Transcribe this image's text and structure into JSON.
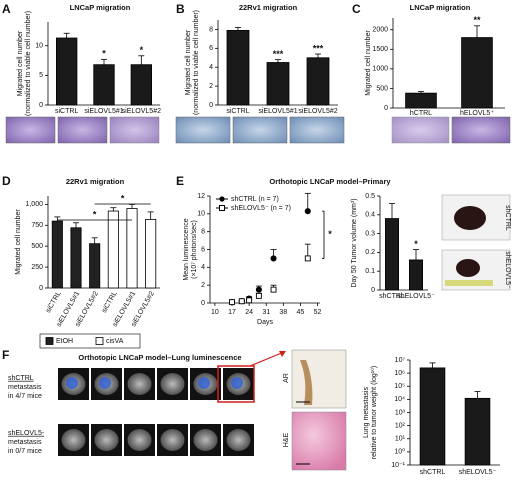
{
  "figure": {
    "panel_labels": [
      "A",
      "B",
      "C",
      "D",
      "E",
      "F"
    ],
    "e_photo_labels": [
      "shCTRL",
      "shELOVL5⁻"
    ],
    "f_title": "Orthotopic LNCaP model–Lung luminescence",
    "f_group_labels": [
      [
        "shCTRL",
        "metastasis",
        "in 4/7 mice"
      ],
      [
        "shELOVL5-",
        "metastasis",
        "in 0/7 mice"
      ]
    ],
    "f_stain_labels": [
      "AR",
      "H&E"
    ]
  },
  "chart_data": [
    {
      "type": "bar",
      "title": "LNCaP migration",
      "ylabel": [
        "Migrated cell number",
        "(normalized to viable cell number)"
      ],
      "categories": [
        "siCTRL",
        "siELOVL5#1",
        "siELOVL5#2"
      ],
      "values": [
        11.3,
        6.8,
        6.8
      ],
      "errors": [
        0.8,
        0.9,
        1.5
      ],
      "significance": [
        null,
        "*",
        "*"
      ],
      "color": "#1a1a1a",
      "ylim": [
        0,
        14
      ],
      "yticks": [
        0,
        5,
        10
      ]
    },
    {
      "type": "bar",
      "title": "22Rv1 migration",
      "ylabel": [
        "Migrated cell number",
        "(normalized to viable cell number)"
      ],
      "categories": [
        "siCTRL",
        "siELOVL5#1",
        "siELOVL5#2"
      ],
      "values": [
        7.9,
        4.5,
        5.0
      ],
      "errors": [
        0.3,
        0.3,
        0.4
      ],
      "significance": [
        null,
        "***",
        "***"
      ],
      "color": "#1a1a1a",
      "ylim": [
        0,
        9
      ],
      "yticks": [
        0,
        2,
        4,
        6,
        8
      ]
    },
    {
      "type": "bar",
      "title": "LNCaP migration",
      "ylabel": [
        "Migrated cell number"
      ],
      "categories": [
        "hCTRL",
        "hELOVL5⁺"
      ],
      "values": [
        380,
        1800
      ],
      "errors": [
        40,
        300
      ],
      "significance": [
        null,
        "**"
      ],
      "color": "#1a1a1a",
      "ylim": [
        0,
        2300
      ],
      "yticks": [
        0,
        500,
        1000,
        1500,
        2000
      ]
    },
    {
      "type": "bar",
      "title": "22Rv1 migration",
      "ylabel": [
        "Migrated cell number"
      ],
      "categories": [
        "siCTRL",
        "siELOVL5#1",
        "siELOVL5#2",
        "siCTRL",
        "siELOVL5#1",
        "siELOVL5#2"
      ],
      "series": [
        {
          "name": "EtOH",
          "color": "#222222",
          "values": [
            800,
            720,
            530,
            null,
            null,
            null
          ],
          "errors": [
            50,
            60,
            70,
            null,
            null,
            null
          ]
        },
        {
          "name": "cisVA",
          "color": "#ffffff",
          "values": [
            null,
            null,
            null,
            920,
            950,
            820
          ],
          "errors": [
            null,
            null,
            null,
            40,
            50,
            90
          ]
        }
      ],
      "brackets": [
        "*",
        "*"
      ],
      "ylim": [
        0,
        1100
      ],
      "yticks": [
        0,
        250,
        500,
        750,
        {
          "value": 1000,
          "label": "1,000"
        }
      ]
    },
    {
      "type": "line",
      "title": "Orthotopic LNCaP model–Primary",
      "ylabel": [
        "Mean luminescence",
        "(×10⁷ photons/sec)"
      ],
      "xlabel": "Days",
      "x": [
        17,
        21,
        24,
        28,
        34,
        48
      ],
      "series": [
        {
          "name": "shCTRL (n = 7)",
          "color": "#000000",
          "marker": "circle",
          "values": [
            0.1,
            0.2,
            0.5,
            1.5,
            5,
            10.3
          ],
          "errors": [
            0.05,
            0.1,
            0.2,
            0.4,
            1.0,
            2.0
          ]
        },
        {
          "name": "shELOVL5⁻ (n = 7)",
          "color": "#000000",
          "marker": "square",
          "values": [
            0.1,
            0.2,
            0.3,
            0.8,
            1.5,
            5
          ],
          "errors": [
            0.05,
            0.1,
            0.1,
            0.3,
            0.5,
            1.6
          ]
        }
      ],
      "significance": "*",
      "xlim": [
        8,
        53
      ],
      "xticks": [
        10,
        17,
        24,
        31,
        38,
        45,
        52
      ],
      "ylim": [
        0,
        12
      ],
      "yticks": [
        0,
        2,
        4,
        6,
        8,
        10,
        12
      ]
    },
    {
      "type": "bar",
      "ylabel": [
        "Day 50 Tumor volume (mm³)"
      ],
      "categories": [
        "shCTRL",
        "shELOVL5⁻"
      ],
      "values": [
        0.38,
        0.16
      ],
      "errors": [
        0.08,
        0.055
      ],
      "significance": [
        null,
        "*"
      ],
      "color": "#1a1a1a",
      "ylim": [
        0,
        0.5
      ],
      "yticks": [
        0,
        0.1,
        0.2,
        0.3,
        0.4,
        0.5
      ]
    },
    {
      "type": "bar",
      "ylabel": [
        "Lung metastasis",
        "relative to tumor weight (log¹⁰)"
      ],
      "categories": [
        "shCTRL",
        "shELOVL5⁻"
      ],
      "values": [
        2500000,
        12000
      ],
      "errors": [
        3500000,
        28000
      ],
      "color": "#1a1a1a",
      "log_scale": true,
      "ylim": [
        0.1,
        10000000
      ],
      "yticks": [
        {
          "value": 0.1,
          "label": "10⁻¹"
        },
        {
          "value": 1,
          "label": "10⁰"
        },
        {
          "value": 10,
          "label": "10¹"
        },
        {
          "value": 100,
          "label": "10²"
        },
        {
          "value": 1000,
          "label": "10³"
        },
        {
          "value": 10000,
          "label": "10⁴"
        },
        {
          "value": 100000,
          "label": "10⁵"
        },
        {
          "value": 1000000,
          "label": "10⁶"
        },
        {
          "value": 10000000,
          "label": "10⁷"
        }
      ]
    }
  ]
}
